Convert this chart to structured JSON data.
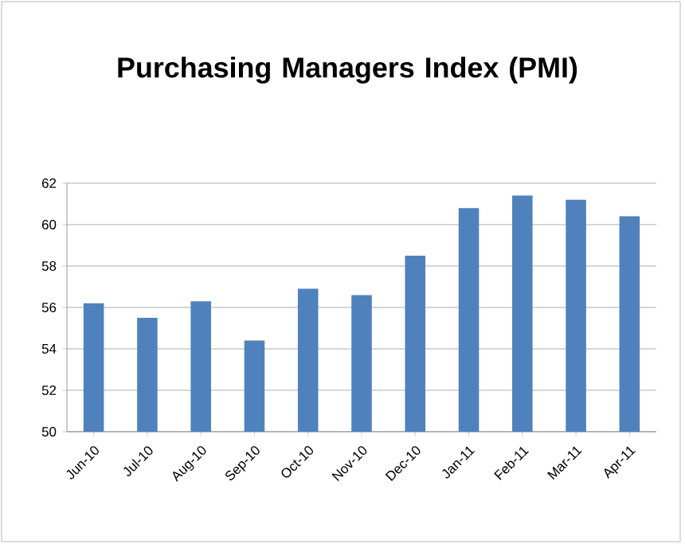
{
  "chart_data": {
    "type": "bar",
    "title": "Purchasing Managers Index (PMI)",
    "categories": [
      "Jun-10",
      "Jul-10",
      "Aug-10",
      "Sep-10",
      "Oct-10",
      "Nov-10",
      "Dec-10",
      "Jan-11",
      "Feb-11",
      "Mar-11",
      "Apr-11"
    ],
    "values": [
      56.2,
      55.5,
      56.3,
      54.4,
      56.9,
      56.6,
      58.5,
      60.8,
      61.4,
      61.2,
      60.4
    ],
    "color": "#4f81bd",
    "ylim": [
      50,
      62
    ],
    "yticks": [
      50,
      52,
      54,
      56,
      58,
      60,
      62
    ],
    "grid": "y"
  }
}
